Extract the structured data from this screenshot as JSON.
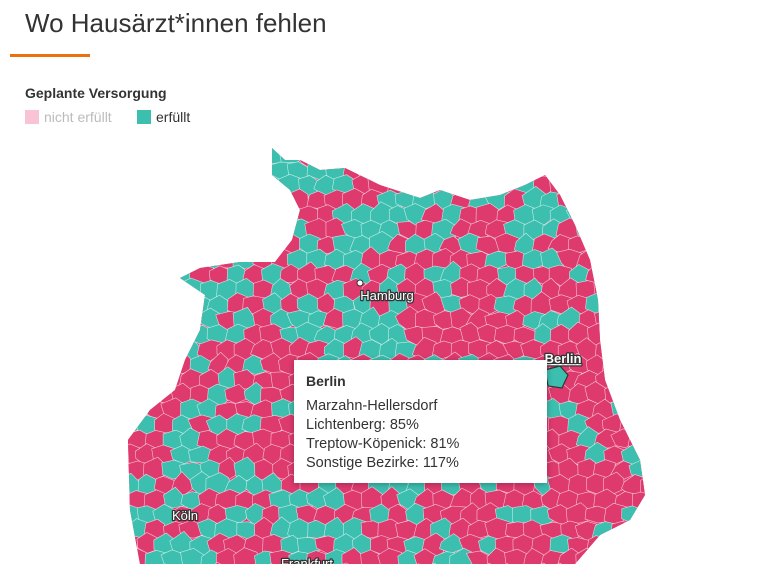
{
  "header": {
    "title": "Wo Hausärzt*innen fehlen"
  },
  "legend": {
    "title": "Geplante Versorgung",
    "items": [
      "nicht erfüllt",
      "erfüllt"
    ]
  },
  "map": {
    "cities": [
      "Hamburg",
      "Berlin",
      "Köln",
      "Frankfurt"
    ]
  },
  "tooltip": {
    "title": "Berlin",
    "lines": [
      "Marzahn-Hellersdorf",
      "Lichtenberg: 85%",
      "Treptow-Köpenick: 81%",
      "Sonstige Bezirke: 117%"
    ]
  }
}
